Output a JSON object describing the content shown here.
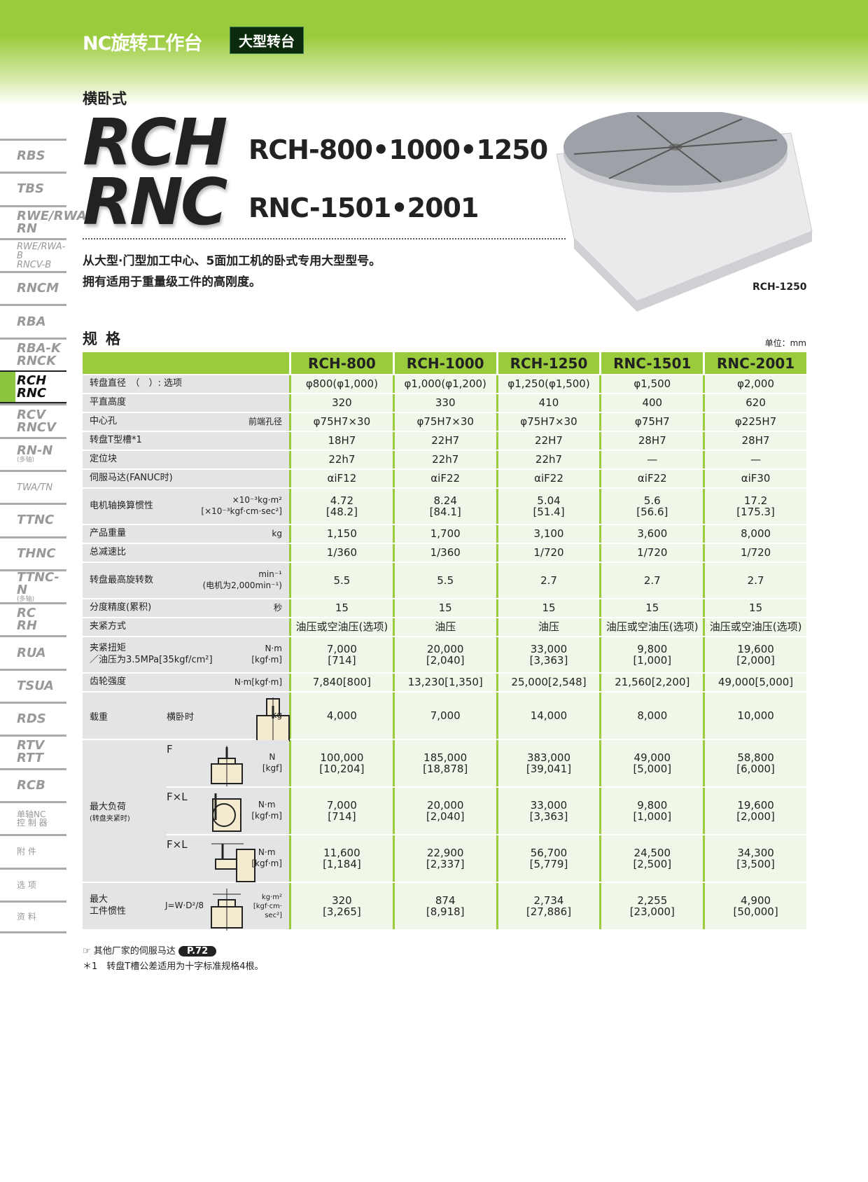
{
  "header": {
    "title": "NC旋转工作台",
    "badge": "大型转台"
  },
  "subtitle": "横卧式",
  "logo": {
    "line1": "RCH",
    "line2": "RNC"
  },
  "models": {
    "line1": "RCH-800•1000•1250",
    "line2": "RNC-1501•2001"
  },
  "description": [
    "从大型·门型加工中心、5面加工机的卧式专用大型型号。",
    "拥有适用于重量级工件的高刚度。"
  ],
  "product_caption": "RCH-1250",
  "spec_heading": "规格",
  "unit": "单位：mm",
  "sidebar": [
    {
      "l1": "RBS"
    },
    {
      "l1": "TBS"
    },
    {
      "l1": "RWE/RWA",
      "l2": "RN"
    },
    {
      "l1": "RWE/RWA-B",
      "l2": "RNCV-B",
      "small": true
    },
    {
      "l1": "RNCM"
    },
    {
      "l1": "RBA"
    },
    {
      "l1": "RBA-K",
      "l2": "RNCK"
    },
    {
      "l1": "RCH",
      "l2": "RNC",
      "active": true
    },
    {
      "l1": "RCV",
      "l2": "RNCV"
    },
    {
      "l1": "RN-N",
      "note": "(多轴)"
    },
    {
      "l1": "TWA/TN",
      "small": true
    },
    {
      "l1": "TTNC"
    },
    {
      "l1": "THNC"
    },
    {
      "l1": "TTNC-N",
      "note": "(多轴)"
    },
    {
      "l1": "RC",
      "l2": "RH"
    },
    {
      "l1": "RUA"
    },
    {
      "l1": "TSUA"
    },
    {
      "l1": "RDS"
    },
    {
      "l1": "RTV",
      "l2": "RTT"
    },
    {
      "l1": "RCB"
    },
    {
      "l1": "单轴NC",
      "l2": "控 制 器",
      "cn": true
    },
    {
      "l1": "附 件",
      "cn": true
    },
    {
      "l1": "选 项",
      "cn": true
    },
    {
      "l1": "资 料",
      "cn": true
    }
  ],
  "table": {
    "columns": [
      "RCH-800",
      "RCH-1000",
      "RCH-1250",
      "RNC-1501",
      "RNC-2001"
    ],
    "rows": [
      {
        "label": "转盘直径　（　）: 选项",
        "unit": "",
        "values": [
          "φ800(φ1,000)",
          "φ1,000(φ1,200)",
          "φ1,250(φ1,500)",
          "φ1,500",
          "φ2,000"
        ]
      },
      {
        "label": "平直高度",
        "unit": "",
        "values": [
          "320",
          "330",
          "410",
          "400",
          "620"
        ]
      },
      {
        "label": "中心孔",
        "unit": "前端孔径",
        "values": [
          "φ75H7×30",
          "φ75H7×30",
          "φ75H7×30",
          "φ75H7",
          "φ225H7"
        ]
      },
      {
        "label": "转盘T型槽*1",
        "unit": "",
        "values": [
          "18H7",
          "22H7",
          "22H7",
          "28H7",
          "28H7"
        ]
      },
      {
        "label": "定位块",
        "unit": "",
        "values": [
          "22h7",
          "22h7",
          "22h7",
          "—",
          "—"
        ]
      },
      {
        "label": "伺服马达(FANUC时)",
        "unit": "",
        "values": [
          "αiF12",
          "αiF22",
          "αiF22",
          "αiF22",
          "αiF30"
        ]
      },
      {
        "label": "电机轴换算惯性",
        "unit": "×10⁻³kg·m²\n[×10⁻³kgf·cm·sec²]",
        "values": [
          "4.72\n[48.2]",
          "8.24\n[84.1]",
          "5.04\n[51.4]",
          "5.6\n[56.6]",
          "17.2\n[175.3]"
        ]
      },
      {
        "label": "产品重量",
        "unit": "kg",
        "values": [
          "1,150",
          "1,700",
          "3,100",
          "3,600",
          "8,000"
        ]
      },
      {
        "label": "总减速比",
        "unit": "",
        "values": [
          "1/360",
          "1/360",
          "1/720",
          "1/720",
          "1/720"
        ]
      },
      {
        "label": "转盘最高旋转数",
        "unit": "min⁻¹\n(电机为2,000min⁻¹)",
        "values": [
          "5.5",
          "5.5",
          "2.7",
          "2.7",
          "2.7"
        ]
      },
      {
        "label": "分度精度(累积)",
        "unit": "秒",
        "values": [
          "15",
          "15",
          "15",
          "15",
          "15"
        ]
      },
      {
        "label": "夹紧方式",
        "unit": "",
        "values": [
          "油压或空油压(选项)",
          "油压",
          "油压",
          "油压或空油压(选项)",
          "油压或空油压(选项)"
        ]
      },
      {
        "label": "夹紧扭矩\n／油压为3.5MPa[35kgf/cm²]",
        "unit": "N·m\n[kgf·m]",
        "values": [
          "7,000\n[714]",
          "20,000\n[2,040]",
          "33,000\n[3,363]",
          "9,800\n[1,000]",
          "19,600\n[2,000]"
        ]
      },
      {
        "label": "齿轮强度",
        "unit": "N·m[kgf·m]",
        "values": [
          "7,840[800]",
          "13,230[1,350]",
          "25,000[2,548]",
          "21,560[2,200]",
          "49,000[5,000]"
        ]
      }
    ],
    "load": {
      "label": "载重",
      "sub": "横卧时",
      "unit": "kg",
      "values": [
        "4,000",
        "7,000",
        "14,000",
        "8,000",
        "10,000"
      ]
    },
    "max_load": {
      "label": "最大负荷",
      "note": "(转盘夹紧时)",
      "rows": [
        {
          "sym": "F",
          "unit": "N\n[kgf]",
          "values": [
            "100,000\n[10,204]",
            "185,000\n[18,878]",
            "383,000\n[39,041]",
            "49,000\n[5,000]",
            "58,800\n[6,000]"
          ]
        },
        {
          "sym": "F×L",
          "unit": "N·m\n[kgf·m]",
          "values": [
            "7,000\n[714]",
            "20,000\n[2,040]",
            "33,000\n[3,363]",
            "9,800\n[1,000]",
            "19,600\n[2,000]"
          ]
        },
        {
          "sym": "F×L",
          "unit": "N·m\n[kgf·m]",
          "values": [
            "11,600\n[1,184]",
            "22,900\n[2,337]",
            "56,700\n[5,779]",
            "24,500\n[2,500]",
            "34,300\n[3,500]"
          ]
        }
      ]
    },
    "inertia": {
      "label": "最大\n工件惯性",
      "formula": "J=W·D²/8",
      "unit": "kg·m²\n[kgf·cm·\nsec²]",
      "values": [
        "320\n[3,265]",
        "874\n[8,918]",
        "2,734\n[27,886]",
        "2,255\n[23,000]",
        "4,900\n[50,000]"
      ]
    }
  },
  "notes": {
    "ref_text": "其他厂家的伺服马达",
    "ref_page": "P.72",
    "footnote": "＊1　转盘T槽公差适用为十字标准规格4根。"
  },
  "colors": {
    "accent": "#9acb3c",
    "cell_bg": "#f0f6e8",
    "label_bg": "#e3e4e6"
  }
}
